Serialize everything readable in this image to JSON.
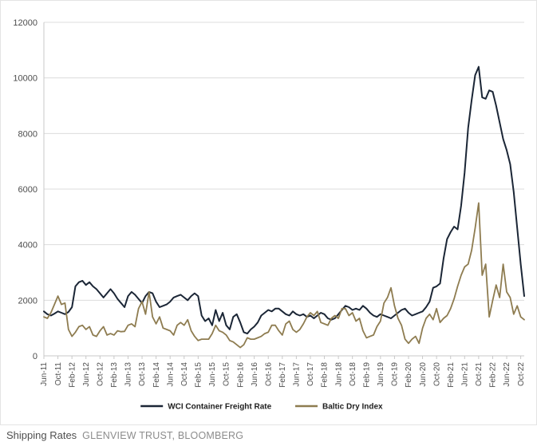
{
  "caption": {
    "title": "Shipping Rates",
    "source": "GLENVIEW TRUST, BLOOMBERG"
  },
  "chart_data": {
    "type": "line",
    "title": "",
    "xlabel": "",
    "ylabel": "",
    "ylim": [
      0,
      12000
    ],
    "y_ticks": [
      0,
      2000,
      4000,
      6000,
      8000,
      10000,
      12000
    ],
    "grid": true,
    "legend_position": "bottom",
    "x_unit": "month",
    "x_range": "Jun-11 to Nov-22",
    "x_tick_every_months": 4,
    "x_tick_labels": [
      "Jun-11",
      "Oct-11",
      "Feb-12",
      "Jun-12",
      "Oct-12",
      "Feb-13",
      "Jun-13",
      "Oct-13",
      "Feb-14",
      "Jun-14",
      "Oct-14",
      "Feb-15",
      "Jun-15",
      "Oct-15",
      "Feb-16",
      "Jun-16",
      "Oct-16",
      "Feb-17",
      "Jun-17",
      "Oct-17",
      "Feb-18",
      "Jun-18",
      "Oct-18",
      "Feb-19",
      "Jun-19",
      "Oct-19",
      "Feb-20",
      "Jun-20",
      "Oct-20",
      "Feb-21",
      "Jun-21",
      "Oct-21",
      "Feb-22",
      "Jun-22",
      "Oct-22"
    ],
    "series": [
      {
        "name": "WCI Container Freight Rate",
        "color": "#1b2636",
        "values": [
          1600,
          1500,
          1450,
          1520,
          1600,
          1550,
          1500,
          1580,
          1750,
          2500,
          2650,
          2700,
          2550,
          2650,
          2500,
          2400,
          2250,
          2100,
          2250,
          2400,
          2250,
          2050,
          1900,
          1750,
          2150,
          2300,
          2200,
          2050,
          1900,
          2150,
          2300,
          2250,
          1950,
          1750,
          1800,
          1850,
          1950,
          2100,
          2150,
          2200,
          2100,
          2000,
          2150,
          2250,
          2150,
          1450,
          1250,
          1350,
          1100,
          1650,
          1250,
          1550,
          1100,
          950,
          1400,
          1500,
          1200,
          850,
          800,
          950,
          1050,
          1200,
          1450,
          1550,
          1650,
          1600,
          1700,
          1700,
          1600,
          1500,
          1450,
          1600,
          1500,
          1450,
          1500,
          1400,
          1450,
          1350,
          1450,
          1550,
          1500,
          1350,
          1300,
          1350,
          1500,
          1650,
          1800,
          1750,
          1650,
          1700,
          1650,
          1800,
          1700,
          1550,
          1450,
          1400,
          1500,
          1450,
          1400,
          1350,
          1450,
          1550,
          1650,
          1700,
          1550,
          1450,
          1500,
          1550,
          1600,
          1750,
          1950,
          2450,
          2500,
          2600,
          3500,
          4200,
          4450,
          4650,
          4550,
          5400,
          6600,
          8200,
          9200,
          10100,
          10400,
          9300,
          9250,
          9550,
          9500,
          9000,
          8400,
          7800,
          7400,
          6900,
          5900,
          4600,
          3300,
          2150
        ]
      },
      {
        "name": "Baltic Dry Index",
        "color": "#8e7c50",
        "values": [
          1400,
          1350,
          1550,
          1850,
          2150,
          1850,
          1900,
          950,
          700,
          850,
          1050,
          1100,
          950,
          1050,
          750,
          700,
          900,
          1050,
          750,
          800,
          750,
          900,
          870,
          880,
          1100,
          1150,
          1050,
          1700,
          1950,
          1500,
          2300,
          1400,
          1150,
          1400,
          1000,
          950,
          900,
          750,
          1100,
          1200,
          1100,
          1300,
          900,
          700,
          550,
          600,
          600,
          600,
          800,
          1100,
          900,
          850,
          750,
          550,
          500,
          400,
          300,
          400,
          650,
          600,
          600,
          650,
          700,
          800,
          850,
          1100,
          1100,
          900,
          750,
          1150,
          1250,
          950,
          850,
          950,
          1150,
          1400,
          1550,
          1450,
          1600,
          1200,
          1150,
          1100,
          1350,
          1450,
          1350,
          1700,
          1700,
          1450,
          1550,
          1250,
          1350,
          900,
          650,
          700,
          750,
          1050,
          1250,
          1900,
          2100,
          2450,
          1800,
          1350,
          1100,
          600,
          450,
          600,
          700,
          450,
          1000,
          1350,
          1500,
          1300,
          1700,
          1200,
          1350,
          1450,
          1700,
          2050,
          2500,
          2900,
          3200,
          3300,
          3800,
          4600,
          5500,
          2900,
          3300,
          1400,
          2000,
          2550,
          2100,
          3300,
          2300,
          2100,
          1500,
          1800,
          1400,
          1300
        ]
      }
    ],
    "style": {
      "grid_color": "#dcdcdc",
      "axis_line_color": "#c8c8c8",
      "tick_text_color": "#4d4d4d",
      "legend_text_color": "#1f1f1f"
    }
  }
}
